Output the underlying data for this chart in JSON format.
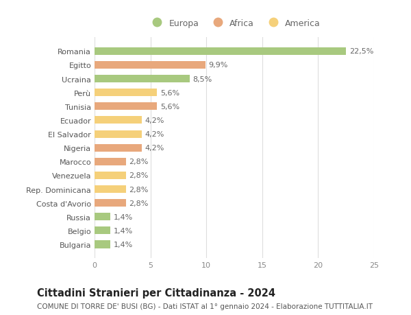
{
  "categories": [
    "Bulgaria",
    "Belgio",
    "Russia",
    "Costa d'Avorio",
    "Rep. Dominicana",
    "Venezuela",
    "Marocco",
    "Nigeria",
    "El Salvador",
    "Ecuador",
    "Tunisia",
    "Perù",
    "Ucraina",
    "Egitto",
    "Romania"
  ],
  "values": [
    1.4,
    1.4,
    1.4,
    2.8,
    2.8,
    2.8,
    2.8,
    4.2,
    4.2,
    4.2,
    5.6,
    5.6,
    8.5,
    9.9,
    22.5
  ],
  "labels": [
    "1,4%",
    "1,4%",
    "1,4%",
    "2,8%",
    "2,8%",
    "2,8%",
    "2,8%",
    "4,2%",
    "4,2%",
    "4,2%",
    "5,6%",
    "5,6%",
    "8,5%",
    "9,9%",
    "22,5%"
  ],
  "continents": [
    "Europa",
    "Europa",
    "Europa",
    "Africa",
    "America",
    "America",
    "Africa",
    "Africa",
    "America",
    "America",
    "Africa",
    "America",
    "Europa",
    "Africa",
    "Europa"
  ],
  "colors": {
    "Europa": "#a8c97f",
    "Africa": "#e8a87c",
    "America": "#f5d07a"
  },
  "legend_entries": [
    "Europa",
    "Africa",
    "America"
  ],
  "legend_colors": [
    "#a8c97f",
    "#e8a87c",
    "#f5d07a"
  ],
  "xlim": [
    0,
    25
  ],
  "xticks": [
    0,
    5,
    10,
    15,
    20,
    25
  ],
  "title": "Cittadini Stranieri per Cittadinanza - 2024",
  "subtitle": "COMUNE DI TORRE DE' BUSI (BG) - Dati ISTAT al 1° gennaio 2024 - Elaborazione TUTTITALIA.IT",
  "bg_color": "#ffffff",
  "grid_color": "#dddddd",
  "bar_height": 0.55,
  "label_fontsize": 8,
  "tick_fontsize": 8,
  "title_fontsize": 10.5,
  "subtitle_fontsize": 7.5,
  "legend_fontsize": 9
}
